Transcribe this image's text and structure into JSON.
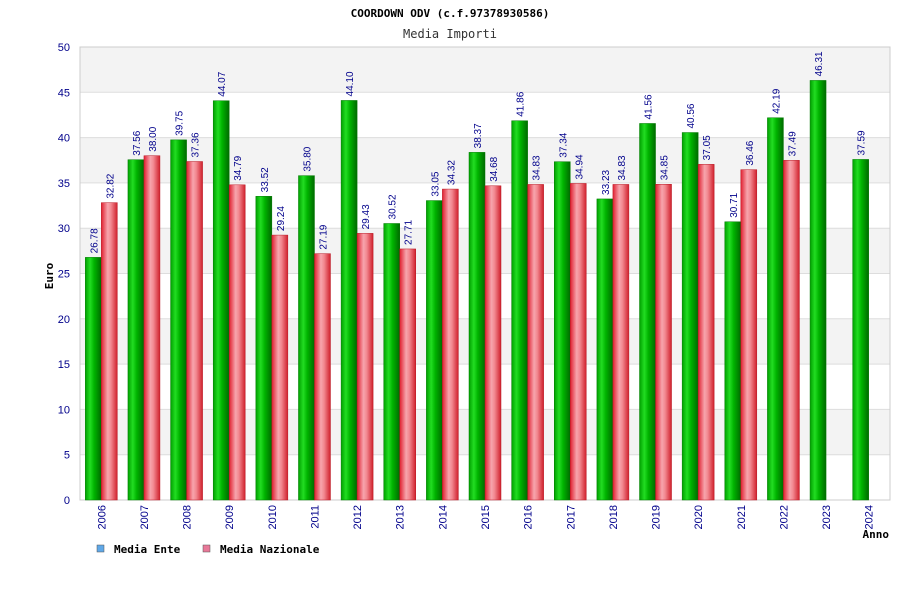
{
  "chart_data": {
    "type": "bar",
    "title": "COORDOWN ODV (c.f.97378930586)",
    "subtitle": "Media Importi",
    "xlabel": "Anno",
    "ylabel": "Euro",
    "ylim": [
      0,
      50
    ],
    "yticks": [
      0,
      5,
      10,
      15,
      20,
      25,
      30,
      35,
      40,
      45,
      50
    ],
    "grid": true,
    "legend_position": "bottom-left",
    "categories": [
      "2006",
      "2007",
      "2008",
      "2009",
      "2010",
      "2011",
      "2012",
      "2013",
      "2014",
      "2015",
      "2016",
      "2017",
      "2018",
      "2019",
      "2020",
      "2021",
      "2022",
      "2023",
      "2024"
    ],
    "series": [
      {
        "name": "Media Ente",
        "color": "#00aa00",
        "legend_color": "#5fa8e8",
        "values": [
          26.78,
          37.56,
          39.75,
          44.07,
          33.52,
          35.8,
          44.1,
          30.52,
          33.05,
          38.37,
          41.86,
          37.34,
          33.23,
          41.56,
          40.56,
          30.71,
          42.19,
          46.31,
          37.59
        ],
        "labels": [
          "26.78",
          "37.56",
          "39.75",
          "44.07",
          "33.52",
          "35.80",
          "44.10",
          "30.52",
          "33.05",
          "38.37",
          "41.86",
          "37.34",
          "33.23",
          "41.56",
          "40.56",
          "30.71",
          "42.19",
          "46.31",
          "37.59"
        ]
      },
      {
        "name": "Media Nazionale",
        "color": "#e8303a",
        "legend_color": "#e87898",
        "values": [
          32.82,
          38.0,
          37.36,
          34.79,
          29.24,
          27.19,
          29.43,
          27.71,
          34.32,
          34.68,
          34.83,
          34.94,
          34.83,
          34.85,
          37.05,
          36.46,
          37.49,
          null,
          null
        ],
        "labels": [
          "32.82",
          "38.00",
          "37.36",
          "34.79",
          "29.24",
          "27.19",
          "29.43",
          "27.71",
          "34.32",
          "34.68",
          "34.83",
          "34.94",
          "34.83",
          "34.85",
          "37.05",
          "36.46",
          "37.49",
          null,
          null
        ]
      }
    ]
  }
}
